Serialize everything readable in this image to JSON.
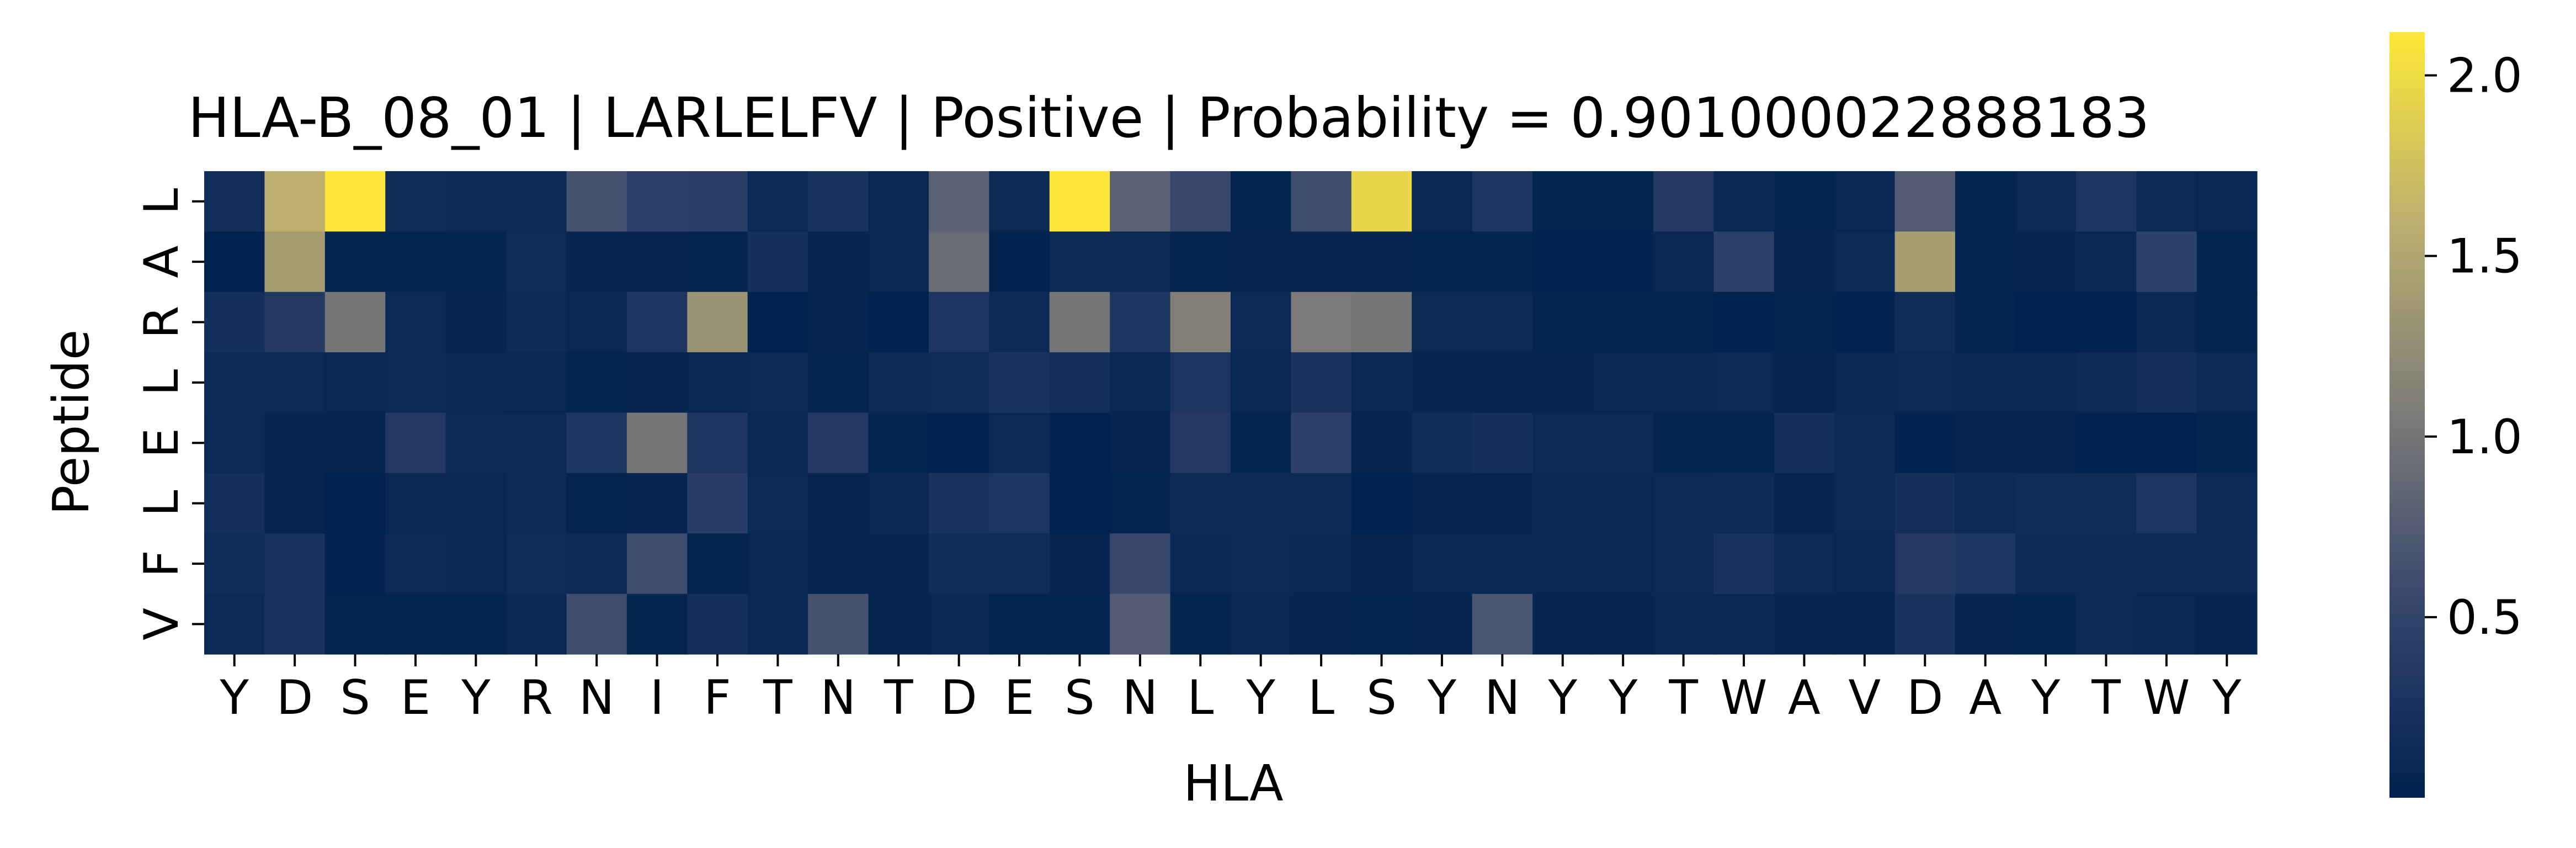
{
  "chart_data": {
    "type": "heatmap",
    "title": "HLA-B_08_01 | LARLELFV | Positive | Probability = 0.901000022888183",
    "xlabel": "HLA",
    "ylabel": "Peptide",
    "x_categories": [
      "Y",
      "D",
      "S",
      "E",
      "Y",
      "R",
      "N",
      "I",
      "F",
      "T",
      "N",
      "T",
      "D",
      "E",
      "S",
      "N",
      "L",
      "Y",
      "L",
      "S",
      "Y",
      "N",
      "Y",
      "Y",
      "T",
      "W",
      "A",
      "V",
      "D",
      "A",
      "Y",
      "T",
      "W",
      "Y"
    ],
    "y_categories": [
      "L",
      "A",
      "R",
      "L",
      "E",
      "L",
      "F",
      "V"
    ],
    "colormap": "cividis",
    "colorbar": {
      "range": [
        0.0,
        2.12
      ],
      "ticks": [
        0.5,
        1.0,
        1.5,
        2.0
      ],
      "tick_labels": [
        "0.5",
        "1.0",
        "1.5",
        "2.0"
      ]
    },
    "values": [
      [
        0.18,
        1.6,
        2.1,
        0.15,
        0.12,
        0.12,
        0.65,
        0.45,
        0.42,
        0.1,
        0.25,
        0.08,
        0.8,
        0.1,
        2.1,
        0.8,
        0.55,
        0.05,
        0.6,
        1.95,
        0.08,
        0.3,
        0.05,
        0.05,
        0.35,
        0.08,
        0.05,
        0.08,
        0.75,
        0.05,
        0.1,
        0.3,
        0.12,
        0.08
      ],
      [
        0.02,
        1.4,
        0.04,
        0.04,
        0.04,
        0.15,
        0.06,
        0.06,
        0.04,
        0.2,
        0.06,
        0.08,
        0.9,
        0.03,
        0.1,
        0.1,
        0.05,
        0.06,
        0.06,
        0.06,
        0.04,
        0.04,
        0.03,
        0.03,
        0.08,
        0.45,
        0.06,
        0.12,
        1.4,
        0.04,
        0.06,
        0.08,
        0.45,
        0.04
      ],
      [
        0.2,
        0.35,
        1.0,
        0.1,
        0.06,
        0.12,
        0.08,
        0.3,
        1.3,
        0.01,
        0.06,
        0.01,
        0.3,
        0.12,
        1.0,
        0.3,
        1.1,
        0.1,
        1.05,
        1.0,
        0.1,
        0.1,
        0.05,
        0.05,
        0.05,
        0.03,
        0.05,
        0.03,
        0.15,
        0.05,
        0.02,
        0.02,
        0.08,
        0.05
      ],
      [
        0.12,
        0.12,
        0.08,
        0.1,
        0.08,
        0.08,
        0.04,
        0.06,
        0.08,
        0.1,
        0.05,
        0.12,
        0.15,
        0.25,
        0.18,
        0.08,
        0.28,
        0.08,
        0.25,
        0.08,
        0.06,
        0.06,
        0.06,
        0.08,
        0.08,
        0.1,
        0.06,
        0.08,
        0.1,
        0.08,
        0.08,
        0.12,
        0.2,
        0.1
      ],
      [
        0.1,
        0.06,
        0.06,
        0.35,
        0.1,
        0.12,
        0.3,
        1.0,
        0.28,
        0.08,
        0.35,
        0.05,
        0.03,
        0.1,
        0.02,
        0.06,
        0.35,
        0.04,
        0.45,
        0.06,
        0.15,
        0.2,
        0.12,
        0.12,
        0.05,
        0.04,
        0.2,
        0.1,
        0.03,
        0.06,
        0.06,
        0.03,
        0.02,
        0.04
      ],
      [
        0.2,
        0.06,
        0.02,
        0.08,
        0.08,
        0.12,
        0.04,
        0.06,
        0.4,
        0.1,
        0.06,
        0.08,
        0.25,
        0.3,
        0.03,
        0.05,
        0.12,
        0.12,
        0.12,
        0.02,
        0.06,
        0.06,
        0.08,
        0.08,
        0.1,
        0.12,
        0.06,
        0.1,
        0.2,
        0.12,
        0.15,
        0.15,
        0.3,
        0.1
      ],
      [
        0.15,
        0.25,
        0.03,
        0.1,
        0.08,
        0.15,
        0.12,
        0.6,
        0.05,
        0.08,
        0.06,
        0.06,
        0.15,
        0.15,
        0.06,
        0.55,
        0.08,
        0.1,
        0.08,
        0.06,
        0.08,
        0.08,
        0.08,
        0.08,
        0.1,
        0.25,
        0.12,
        0.08,
        0.35,
        0.3,
        0.12,
        0.12,
        0.12,
        0.12
      ],
      [
        0.1,
        0.25,
        0.04,
        0.04,
        0.05,
        0.08,
        0.6,
        0.05,
        0.2,
        0.08,
        0.65,
        0.06,
        0.08,
        0.04,
        0.04,
        0.75,
        0.05,
        0.08,
        0.06,
        0.05,
        0.06,
        0.7,
        0.06,
        0.06,
        0.08,
        0.08,
        0.06,
        0.06,
        0.25,
        0.06,
        0.05,
        0.1,
        0.08,
        0.06
      ]
    ]
  }
}
